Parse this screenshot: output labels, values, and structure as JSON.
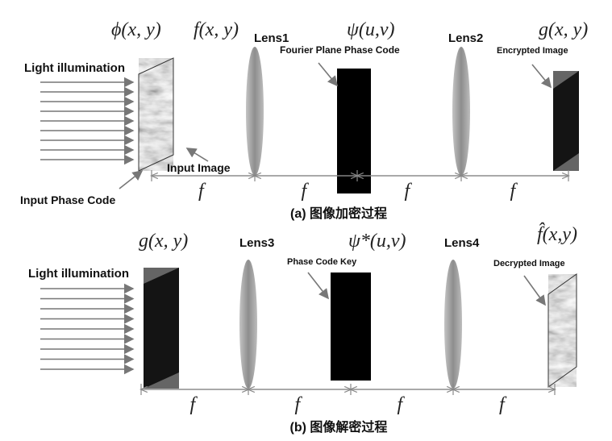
{
  "panel_a": {
    "planes": [
      "ϕ(x, y)",
      "f(x, y)",
      "ψ(u,v)",
      "g(x, y)"
    ],
    "lenses": [
      "Lens1",
      "Lens2"
    ],
    "illumination": "Light illumination",
    "annotations": [
      "Fourier Plane Phase Code",
      "Encrypted Image",
      "Input Image",
      "Input Phase Code"
    ],
    "distances": [
      "f",
      "f",
      "f",
      "f"
    ],
    "caption": "(a) 图像加密过程"
  },
  "panel_b": {
    "planes": [
      "g(x, y)",
      "ψ*(u,v)",
      "f̂(x,y)"
    ],
    "lenses": [
      "Lens3",
      "Lens4"
    ],
    "illumination": "Light illumination",
    "annotations": [
      "Phase Code Key",
      "Decrypted Image"
    ],
    "distances": [
      "f",
      "f",
      "f",
      "f"
    ],
    "caption": "(b) 图像解密过程"
  }
}
